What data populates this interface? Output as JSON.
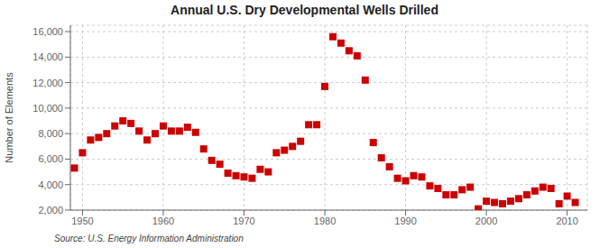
{
  "chart_data": {
    "type": "scatter",
    "title": "Annual U.S. Dry Developmental Wells Drilled",
    "y_label": "Number of Elements",
    "annotations": [
      "Source: U.S. Energy Information Administration"
    ],
    "x": [
      1949,
      1950,
      1951,
      1952,
      1953,
      1954,
      1955,
      1956,
      1957,
      1958,
      1959,
      1960,
      1961,
      1962,
      1963,
      1964,
      1965,
      1966,
      1967,
      1968,
      1969,
      1970,
      1971,
      1972,
      1973,
      1974,
      1975,
      1976,
      1977,
      1978,
      1979,
      1980,
      1981,
      1982,
      1983,
      1984,
      1985,
      1986,
      1987,
      1988,
      1989,
      1990,
      1991,
      1992,
      1993,
      1994,
      1995,
      1996,
      1997,
      1998,
      1999,
      2000,
      2001,
      2002,
      2003,
      2004,
      2005,
      2006,
      2007,
      2008,
      2009,
      2010,
      2011
    ],
    "values": [
      5300,
      6500,
      7500,
      7700,
      8000,
      8600,
      9000,
      8800,
      8200,
      7500,
      8000,
      8600,
      8200,
      8200,
      8500,
      8100,
      6800,
      5900,
      5600,
      4900,
      4700,
      4600,
      4500,
      5200,
      5000,
      6500,
      6700,
      7000,
      7400,
      8700,
      8700,
      11700,
      15600,
      15100,
      14500,
      14100,
      12200,
      7300,
      6100,
      5400,
      4500,
      4300,
      4700,
      4600,
      3900,
      3700,
      3200,
      3200,
      3600,
      3800,
      2100,
      2700,
      2600,
      2500,
      2700,
      2900,
      3200,
      3500,
      3800,
      3700,
      2500,
      3100,
      2600
    ],
    "color": "#cc0000",
    "marker": "square",
    "xlim": [
      1948.5,
      2012.5
    ],
    "ylim": [
      2000,
      16500
    ],
    "xticks": [
      1950,
      1960,
      1970,
      1980,
      1990,
      2000,
      2010
    ],
    "yticks": [
      {
        "value": 2000,
        "label": "2,000"
      },
      {
        "value": 4000,
        "label": "4,000"
      },
      {
        "value": 6000,
        "label": "6,000"
      },
      {
        "value": 8000,
        "label": "8,000"
      },
      {
        "value": 10000,
        "label": "10,000"
      },
      {
        "value": 12000,
        "label": "12,000"
      },
      {
        "value": 14000,
        "label": "14,000"
      },
      {
        "value": 16000,
        "label": "16,000"
      }
    ],
    "grid": true
  }
}
